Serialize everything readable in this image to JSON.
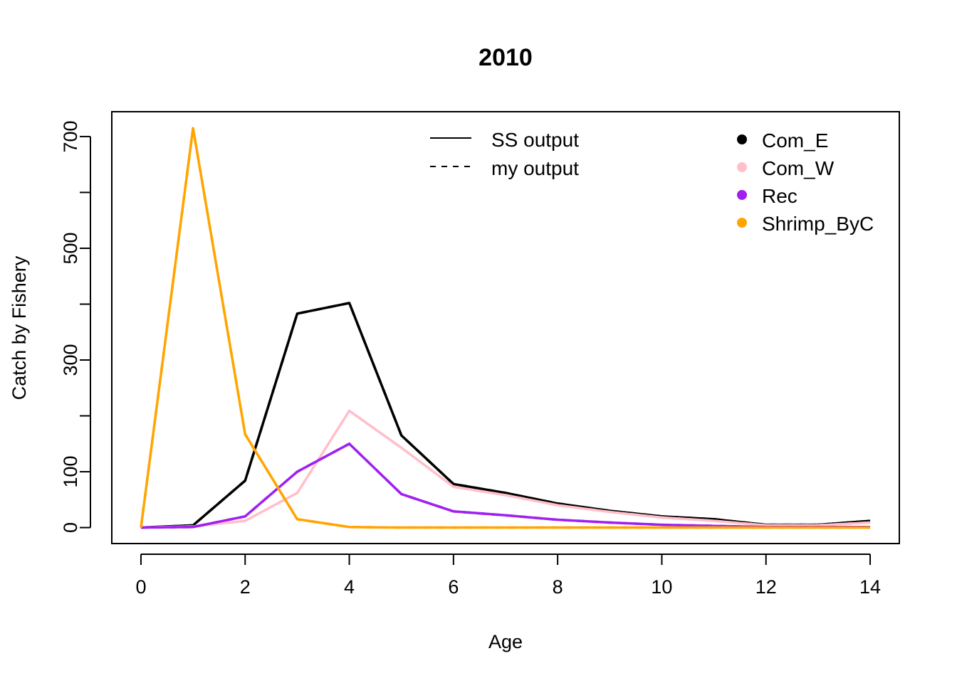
{
  "chart_data": {
    "type": "line",
    "title": "2010",
    "xlabel": "Age",
    "ylabel": "Catch by Fishery",
    "xlim": [
      -0.56,
      14.56
    ],
    "ylim": [
      -28.6,
      744.5
    ],
    "xticks": [
      0,
      2,
      4,
      6,
      8,
      10,
      12,
      14
    ],
    "yticks": [
      0,
      100,
      300,
      500,
      700
    ],
    "grid": false,
    "x": [
      0,
      1,
      2,
      3,
      4,
      5,
      6,
      7,
      8,
      9,
      10,
      11,
      12,
      13,
      14
    ],
    "series": [
      {
        "name": "Com_E",
        "color": "#000000",
        "ss_output": [
          0,
          4,
          84,
          383,
          402,
          165,
          78,
          62,
          43,
          30,
          20,
          15,
          5,
          5,
          12
        ],
        "my_output": [
          0,
          4,
          84,
          383,
          402,
          165,
          78,
          62,
          43,
          30,
          20,
          15,
          5,
          5,
          12
        ]
      },
      {
        "name": "Com_W",
        "color": "#FFC0CB",
        "ss_output": [
          0,
          2,
          12,
          62,
          209,
          143,
          73,
          58,
          40,
          28,
          18,
          12,
          4,
          4,
          9
        ],
        "my_output": [
          0,
          2,
          12,
          62,
          209,
          143,
          73,
          58,
          40,
          28,
          18,
          12,
          4,
          4,
          9
        ]
      },
      {
        "name": "Rec",
        "color": "#A020F0",
        "ss_output": [
          0,
          1,
          20,
          100,
          150,
          60,
          29,
          22,
          14,
          9,
          5,
          3,
          1,
          1,
          1
        ],
        "my_output": [
          0,
          1,
          20,
          100,
          150,
          60,
          29,
          22,
          14,
          9,
          5,
          3,
          1,
          1,
          1
        ]
      },
      {
        "name": "Shrimp_ByC",
        "color": "#FFA500",
        "ss_output": [
          0,
          715,
          167,
          15,
          1,
          0,
          0,
          0,
          0,
          0,
          0,
          0,
          0,
          0,
          0
        ],
        "my_output": [
          0,
          715,
          167,
          15,
          1,
          0,
          0,
          0,
          0,
          0,
          0,
          0,
          0,
          0,
          0
        ]
      }
    ],
    "legend_linetype": {
      "position": "top-center",
      "entries": [
        {
          "label": "SS output",
          "style": "solid"
        },
        {
          "label": "my output",
          "style": "dashed"
        }
      ]
    },
    "legend_fishery": {
      "position": "top-right",
      "entries": [
        "Com_E",
        "Com_W",
        "Rec",
        "Shrimp_ByC"
      ]
    }
  }
}
